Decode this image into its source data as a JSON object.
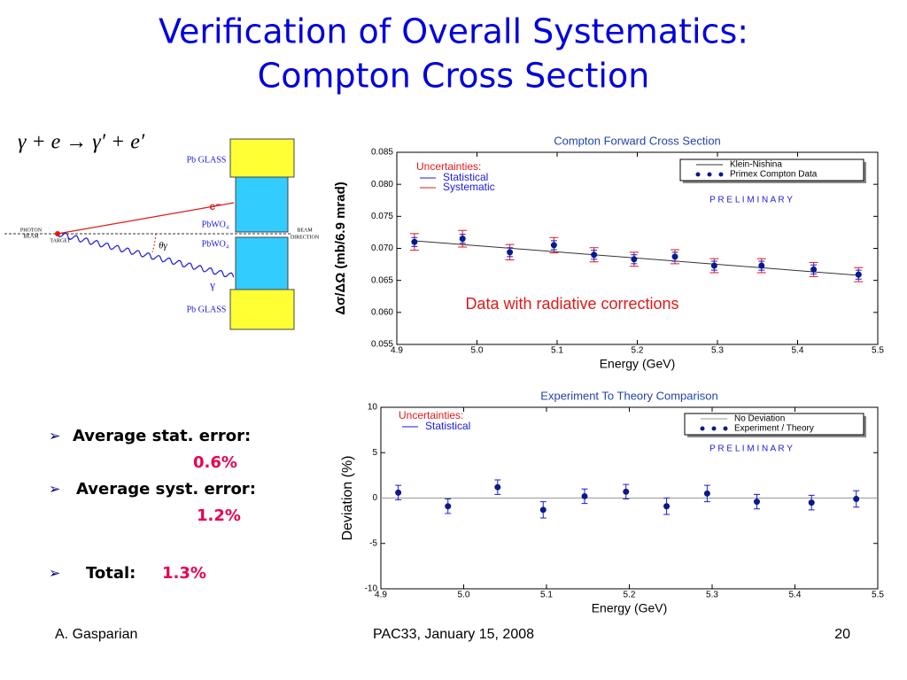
{
  "title_lines": [
    "Verification of Overall Systematics:",
    "Compton Cross Section"
  ],
  "equation": "γ + e → γ′ + e′",
  "diagram": {
    "pb_glass_top": "Pb GLASS",
    "electron": "e⁻",
    "pbwo4_top": "PbWO₄",
    "pbwo4_bottom": "PbWO₄",
    "gamma": "γ",
    "pb_glass_bottom": "Pb GLASS",
    "theta": "θγ",
    "photon_beam": [
      "PHOTON",
      "BEAM"
    ],
    "target": "TARGET",
    "beam_direction": [
      "BEAM",
      "DIRECTION"
    ]
  },
  "bullets": [
    {
      "label": "Average stat. error:",
      "value": "0.6%"
    },
    {
      "label": "Average syst. error:",
      "value": "1.2%"
    },
    {
      "label": "Total:",
      "value": "1.3%"
    }
  ],
  "footer": {
    "author": "A. Gasparian",
    "event": "PAC33, January 15, 2008",
    "page": "20"
  },
  "chart_data": [
    {
      "type": "scatter",
      "title": "Compton Forward Cross Section",
      "x_label": "Energy (GeV)",
      "y_label": "Δσ/ΔΩ (mb/6.9 mrad)",
      "xlim": [
        4.9,
        5.5
      ],
      "xticks": [
        4.9,
        {
          "value": 5.0,
          "label": "5.0"
        },
        5.1,
        5.2,
        5.3,
        5.4,
        5.5
      ],
      "ylim": [
        0.055,
        0.085
      ],
      "yticks": [
        0.055,
        {
          "value": 0.06,
          "label": "0.060"
        },
        0.065,
        {
          "value": 0.07,
          "label": "0.070"
        },
        0.075,
        {
          "value": 0.08,
          "label": "0.080"
        },
        0.085
      ],
      "uncertainties": {
        "title": "Uncertainties:",
        "items": [
          {
            "name": "Statistical",
            "color": "#1a1adf"
          },
          {
            "name": "Systematic",
            "color": "#e01818"
          }
        ]
      },
      "preliminary": "P R E L I M I N A R Y",
      "annotation": "Data with radiative corrections",
      "series": [
        {
          "name": "Klein-Nishina",
          "style": "line",
          "color": "#333333",
          "x": [
            4.92,
            5.475
          ],
          "values": [
            0.0712,
            0.0658
          ]
        },
        {
          "name": "Primex Compton Data",
          "style": "dots",
          "color": "#0a1a8a",
          "x": [
            4.922,
            4.982,
            5.041,
            5.096,
            5.146,
            5.196,
            5.247,
            5.296,
            5.355,
            5.42,
            5.476
          ],
          "values": [
            0.071,
            0.0715,
            0.0694,
            0.0705,
            0.069,
            0.0683,
            0.0687,
            0.0673,
            0.0673,
            0.0667,
            0.0659
          ],
          "errors": [
            [
              0.0007,
              0.0007,
              0.0007,
              0.0007,
              0.0007,
              0.0007,
              0.0007,
              0.0007,
              0.0007,
              0.0007,
              0.0007
            ],
            [
              0.0013,
              0.0013,
              0.0012,
              0.0012,
              0.0011,
              0.0011,
              0.0011,
              0.0011,
              0.0011,
              0.0011,
              0.0011
            ]
          ]
        }
      ]
    },
    {
      "type": "scatter",
      "title": "Experiment To Theory Comparison",
      "x_label": "Energy (GeV)",
      "y_label": "Deviation (%)",
      "xlim": [
        4.9,
        5.5
      ],
      "xticks": [
        4.9,
        {
          "value": 5.0,
          "label": "5.0"
        },
        5.1,
        5.2,
        5.3,
        5.4,
        5.5
      ],
      "ylim": [
        -10,
        10
      ],
      "yticks": [
        -10,
        -5,
        0,
        5,
        10
      ],
      "uncertainties": {
        "title": "Uncertainties:",
        "items": [
          {
            "name": "Statistical",
            "color": "#1a1adf"
          }
        ]
      },
      "preliminary": "P R E L I M I N A R Y",
      "series": [
        {
          "name": "No Deviation",
          "style": "line",
          "color": "#999999",
          "x": [
            4.9,
            5.5
          ],
          "values": [
            0,
            0
          ]
        },
        {
          "name": "Experiment / Theory",
          "style": "dots",
          "color": "#0a1a8a",
          "x": [
            4.921,
            4.981,
            5.041,
            5.096,
            5.146,
            5.196,
            5.245,
            5.294,
            5.354,
            5.42,
            5.474
          ],
          "values": [
            0.6,
            -0.9,
            1.2,
            -1.3,
            0.2,
            0.7,
            -0.9,
            0.5,
            -0.4,
            -0.5,
            -0.1
          ],
          "errors": [
            [
              0.8,
              0.8,
              0.8,
              0.9,
              0.8,
              0.8,
              0.9,
              0.9,
              0.8,
              0.8,
              0.9
            ]
          ]
        }
      ]
    }
  ]
}
